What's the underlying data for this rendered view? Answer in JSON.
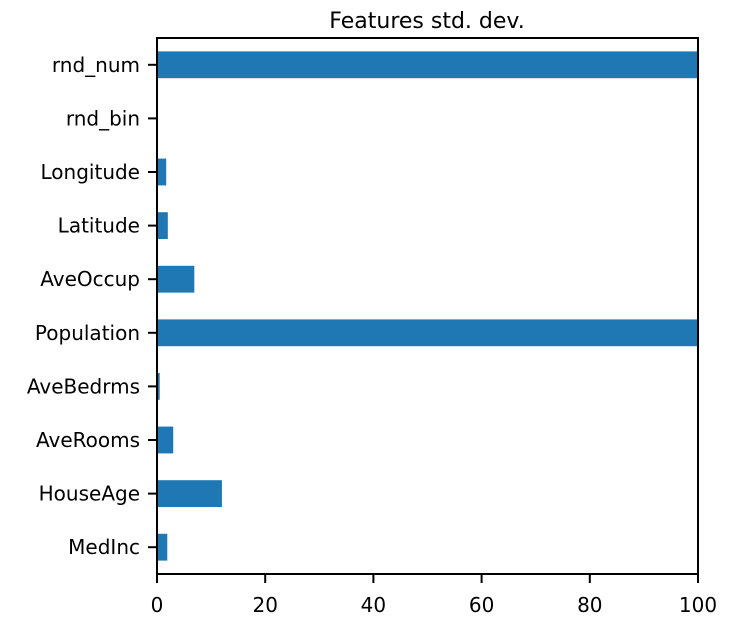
{
  "chart_data": {
    "type": "bar",
    "orientation": "horizontal",
    "title": "Features std. dev.",
    "xlabel": "",
    "ylabel": "",
    "xlim": [
      0,
      100
    ],
    "x_ticks": [
      0,
      20,
      40,
      60,
      80,
      100
    ],
    "grid": false,
    "categories": [
      "MedInc",
      "HouseAge",
      "AveRooms",
      "AveBedrms",
      "Population",
      "AveOccup",
      "Latitude",
      "Longitude",
      "rnd_bin",
      "rnd_num"
    ],
    "values": [
      1.9,
      12.0,
      3.0,
      0.5,
      100,
      6.9,
      2.0,
      1.7,
      0.0,
      100
    ],
    "bar_color": "#1f77b4"
  }
}
